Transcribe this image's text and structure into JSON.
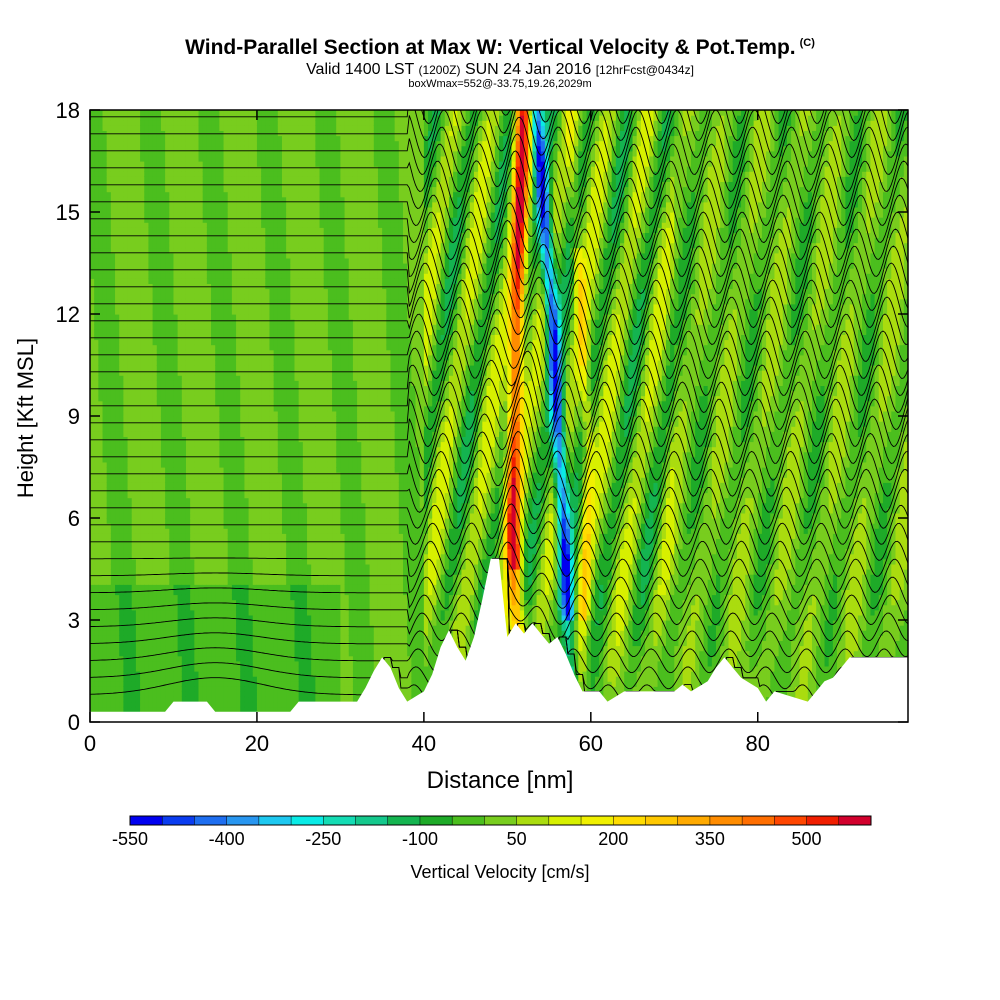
{
  "header": {
    "title": "Wind-Parallel Section at Max W: Vertical Velocity & Pot.Temp.",
    "copyright": "(C)",
    "valid": "Valid 1400 LST",
    "valid_utc": "(1200Z)",
    "date": "SUN 24 Jan 2016",
    "forecast": "[12hrFcst@0434z]",
    "box_info": "boxWmax=552@-33.75,19.26,2029m"
  },
  "chart_data": {
    "type": "heatmap",
    "title": "Wind-Parallel Section at Max W: Vertical Velocity & Pot.Temp.",
    "xlabel": "Distance [nm]",
    "ylabel": "Height [Kft MSL]",
    "xlim": [
      0,
      98
    ],
    "ylim": [
      0,
      18
    ],
    "x_ticks": [
      "0",
      "20",
      "40",
      "60",
      "80"
    ],
    "y_ticks": [
      "0",
      "3",
      "6",
      "9",
      "12",
      "15",
      "18"
    ],
    "max_w_cm_s": 552,
    "updraft_core_nm": [
      50,
      58
    ],
    "terrain_peak": {
      "distance_nm": 49,
      "height_kft": 4.8
    },
    "terrain_profile_kft": [
      [
        0,
        0.3
      ],
      [
        5,
        0.3
      ],
      [
        9,
        0.3
      ],
      [
        10,
        0.6
      ],
      [
        14,
        0.6
      ],
      [
        15,
        0.3
      ],
      [
        24,
        0.3
      ],
      [
        25,
        0.6
      ],
      [
        32,
        0.6
      ],
      [
        33,
        1.0
      ],
      [
        34,
        1.5
      ],
      [
        35,
        1.9
      ],
      [
        36,
        1.6
      ],
      [
        37,
        1.0
      ],
      [
        38,
        0.6
      ],
      [
        40,
        0.9
      ],
      [
        41,
        1.4
      ],
      [
        42,
        2.2
      ],
      [
        43,
        2.7
      ],
      [
        44,
        2.2
      ],
      [
        45,
        1.8
      ],
      [
        46,
        2.5
      ],
      [
        47,
        3.6
      ],
      [
        48,
        4.8
      ],
      [
        49,
        4.8
      ],
      [
        50,
        2.5
      ],
      [
        51,
        2.9
      ],
      [
        52,
        2.6
      ],
      [
        53,
        2.9
      ],
      [
        54,
        2.6
      ],
      [
        55,
        2.3
      ],
      [
        56,
        2.5
      ],
      [
        57,
        2.0
      ],
      [
        58,
        1.4
      ],
      [
        59,
        0.9
      ],
      [
        60,
        0.9
      ],
      [
        61,
        0.9
      ],
      [
        62,
        0.6
      ],
      [
        64,
        0.9
      ],
      [
        68,
        0.9
      ],
      [
        70,
        0.9
      ],
      [
        71,
        1.1
      ],
      [
        72,
        0.9
      ],
      [
        74,
        1.2
      ],
      [
        75,
        1.6
      ],
      [
        76,
        1.9
      ],
      [
        77,
        1.6
      ],
      [
        78,
        1.3
      ],
      [
        80,
        1.0
      ],
      [
        81,
        0.6
      ],
      [
        82,
        0.9
      ],
      [
        86,
        0.6
      ],
      [
        87,
        0.9
      ],
      [
        88,
        1.2
      ],
      [
        89,
        1.3
      ],
      [
        90,
        1.6
      ],
      [
        91,
        1.9
      ],
      [
        98,
        1.9
      ]
    ],
    "colorbar": {
      "label": "Vertical Velocity [cm/s]",
      "tick_labels": [
        "-550",
        "-400",
        "-250",
        "-100",
        "50",
        "200",
        "350",
        "500"
      ],
      "tick_values": [
        -550,
        -400,
        -250,
        -100,
        50,
        200,
        350,
        500
      ],
      "levels": [
        -550,
        -500,
        -450,
        -400,
        -350,
        -300,
        -250,
        -200,
        -150,
        -100,
        -50,
        0,
        50,
        100,
        150,
        200,
        250,
        300,
        350,
        400,
        450,
        500,
        550,
        600
      ],
      "colors": [
        "#0000f0",
        "#0a3cf0",
        "#1e6ef0",
        "#2896f0",
        "#1ec8f0",
        "#0aebe6",
        "#14dcb4",
        "#14c88c",
        "#14b450",
        "#1eaa28",
        "#4bbe1e",
        "#78cd1e",
        "#aadc0f",
        "#d7f000",
        "#f0f000",
        "#ffdc00",
        "#ffc800",
        "#ffaa00",
        "#ff8c00",
        "#ff6e00",
        "#ff4600",
        "#f01e00",
        "#d2002d"
      ]
    }
  }
}
